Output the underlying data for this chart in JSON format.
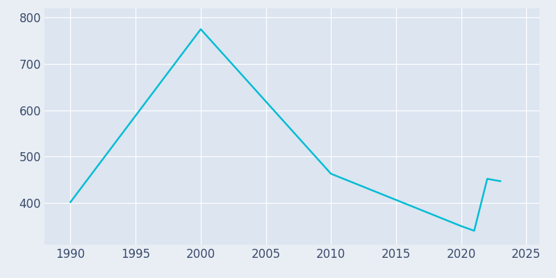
{
  "years": [
    1990,
    2000,
    2010,
    2020,
    2021,
    2022,
    2023
  ],
  "population": [
    402,
    775,
    463,
    350,
    340,
    452,
    447
  ],
  "line_color": "#00bcd4",
  "fig_bg_color": "#e8eef4",
  "plot_bg_color": "#dce5f0",
  "grid_color": "#ffffff",
  "tick_color": "#3a4a6b",
  "xlim": [
    1988,
    2026
  ],
  "ylim": [
    310,
    820
  ],
  "yticks": [
    400,
    500,
    600,
    700,
    800
  ],
  "xticks": [
    1990,
    1995,
    2000,
    2005,
    2010,
    2015,
    2020,
    2025
  ],
  "linewidth": 1.8,
  "tick_fontsize": 12
}
